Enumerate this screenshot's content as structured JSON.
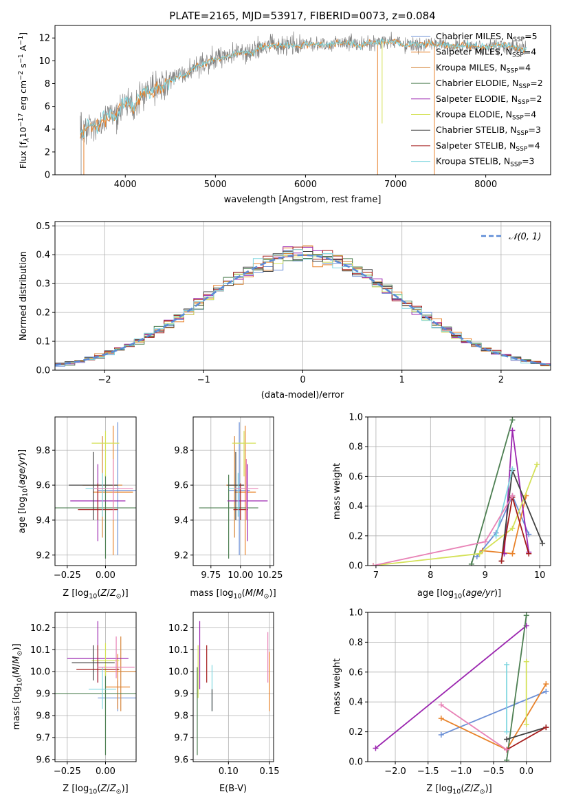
{
  "figure_title": "PLATE=2165, MJD=53917, FIBERID=0073, z=0.084",
  "colors": {
    "chabrier_miles": "#6b8fd6",
    "salpeter_miles": "#e8822a",
    "kroupa_miles": "#d6863b",
    "chabrier_elodie": "#4d7f52",
    "salpeter_elodie": "#9c27b0",
    "kroupa_elodie": "#d4e157",
    "chabrier_stelib": "#424242",
    "salpeter_stelib": "#a51c1c",
    "kroupa_stelib": "#7ed6df",
    "pink": "#e882b6",
    "data_grey": "#808080"
  },
  "chart_data": [
    {
      "id": "spectrum",
      "type": "line",
      "title": "PLATE=2165, MJD=53917, FIBERID=0073, z=0.084",
      "xlabel": "wavelength [Angstrom, rest frame]",
      "ylabel": "Flux [f_λ 10^-17 erg cm^-2 s^-1 A^-1]",
      "xlim": [
        3220,
        8720
      ],
      "ylim": [
        0,
        13.1
      ],
      "xticks": [
        4000,
        5000,
        6000,
        7000,
        8000
      ],
      "yticks": [
        0,
        2,
        4,
        6,
        8,
        10,
        12
      ],
      "grid": false,
      "legend_position": "top-right",
      "legend": [
        {
          "label": "Chabrier MILES, N",
          "sub": "SSP",
          "tail": "=5",
          "color": "#6b8fd6"
        },
        {
          "label": "Salpeter MILES, N",
          "sub": "SSP",
          "tail": "=4",
          "color": "#e8822a"
        },
        {
          "label": "Kroupa MILES, N",
          "sub": "SSP",
          "tail": "=4",
          "color": "#d6863b"
        },
        {
          "label": "Chabrier ELODIE, N",
          "sub": "SSP",
          "tail": "=2",
          "color": "#4d7f52"
        },
        {
          "label": "Salpeter ELODIE, N",
          "sub": "SSP",
          "tail": "=2",
          "color": "#9c27b0"
        },
        {
          "label": "Kroupa ELODIE, N",
          "sub": "SSP",
          "tail": "=4",
          "color": "#d4e157"
        },
        {
          "label": "Chabrier STELIB, N",
          "sub": "SSP",
          "tail": "=3",
          "color": "#424242"
        },
        {
          "label": "Salpeter STELIB, N",
          "sub": "SSP",
          "tail": "=4",
          "color": "#a51c1c"
        },
        {
          "label": "Kroupa STELIB, N",
          "sub": "SSP",
          "tail": "=3",
          "color": "#7ed6df"
        }
      ],
      "model_x": [
        3500,
        3600,
        3700,
        3800,
        3900,
        4000,
        4100,
        4200,
        4300,
        4400,
        4500,
        4600,
        4700,
        4800,
        4900,
        5000,
        5100,
        5200,
        5300,
        5400,
        5500,
        5600,
        5700,
        5800,
        5900,
        6000,
        6100,
        6200,
        6300,
        6400,
        6500,
        6600,
        6700,
        6800,
        6900,
        7000,
        7100,
        7200,
        7300,
        7400,
        7600,
        7800,
        8000,
        8200,
        8400
      ],
      "model_y": [
        3.5,
        4.4,
        4.2,
        5.3,
        5.2,
        6.5,
        5.8,
        7.2,
        7.3,
        7.9,
        8.3,
        8.6,
        8.9,
        9.6,
        9.8,
        10.2,
        10.3,
        10.5,
        10.8,
        10.6,
        11.2,
        11.3,
        11.3,
        11.4,
        11.3,
        11.5,
        11.4,
        11.4,
        11.5,
        11.6,
        11.6,
        11.3,
        11.6,
        11.6,
        11.7,
        11.7,
        11.3,
        11.5,
        11.4,
        11.5,
        11.3,
        11.4,
        11.2,
        11.4,
        11.0
      ]
    },
    {
      "id": "residuals",
      "type": "step",
      "xlabel": "(data-model)/error",
      "ylabel": "Normed distribution",
      "xlim": [
        -2.5,
        2.5
      ],
      "ylim": [
        0,
        0.515
      ],
      "xticks": [
        -2,
        -1,
        0,
        1,
        2
      ],
      "xtick_labels": [
        "−2",
        "−1",
        "0",
        "1",
        "2"
      ],
      "yticks": [
        0,
        0.1,
        0.2,
        0.3,
        0.4,
        0.5
      ],
      "grid": true,
      "legend_position": "top-right",
      "legend": [
        {
          "label": "𝒩(0, 1)",
          "color": "#5b8ad6"
        }
      ],
      "bin_width": 0.1
    },
    {
      "id": "age_vs_Z",
      "type": "errorbar",
      "xlabel": "Z [log10(Z/Z⊙)]",
      "ylabel": "age [log10(age/yr)]",
      "xlim": [
        -0.33,
        0.2
      ],
      "ylim": [
        9.14,
        9.99
      ],
      "xticks": [
        -0.25,
        0
      ],
      "xtick_labels": [
        "−0.25",
        "0.00"
      ],
      "yticks": [
        9.2,
        9.4,
        9.6,
        9.8
      ],
      "grid": true,
      "points": [
        {
          "x": 0.08,
          "y": 9.57,
          "xerr": 0.13,
          "ylo": 9.2,
          "yhi": 9.96,
          "color": "#6b8fd6"
        },
        {
          "x": 0.05,
          "y": 9.56,
          "xerr": 0.13,
          "ylo": 9.2,
          "yhi": 9.94,
          "color": "#e8822a"
        },
        {
          "x": -0.02,
          "y": 9.6,
          "xerr": 0.13,
          "ylo": 9.3,
          "yhi": 9.88,
          "color": "#d6863b"
        },
        {
          "x": 0.0,
          "y": 9.47,
          "xerr": 0.34,
          "ylo": 9.18,
          "yhi": 9.66,
          "color": "#4d7f52"
        },
        {
          "x": -0.05,
          "y": 9.51,
          "xerr": 0.18,
          "ylo": 9.28,
          "yhi": 9.72,
          "color": "#9c27b0"
        },
        {
          "x": 0.0,
          "y": 9.84,
          "xerr": 0.09,
          "ylo": 9.65,
          "yhi": 9.91,
          "color": "#d4e157"
        },
        {
          "x": -0.08,
          "y": 9.6,
          "xerr": 0.16,
          "ylo": 9.4,
          "yhi": 9.79,
          "color": "#424242"
        },
        {
          "x": -0.05,
          "y": 9.46,
          "xerr": 0.13,
          "ylo": 9.4,
          "yhi": 9.61,
          "color": "#a51c1c"
        },
        {
          "x": -0.02,
          "y": 9.58,
          "xerr": 0.11,
          "ylo": 9.42,
          "yhi": 9.67,
          "color": "#7ed6df"
        },
        {
          "x": 0.05,
          "y": 9.58,
          "xerr": 0.13,
          "ylo": 9.4,
          "yhi": 9.75,
          "color": "#e882b6"
        }
      ]
    },
    {
      "id": "age_vs_mass",
      "type": "errorbar",
      "xlabel": "mass [log10(M/M⊙)]",
      "ylabel": "",
      "xlim": [
        9.6,
        10.28
      ],
      "ylim": [
        9.14,
        9.99
      ],
      "xticks": [
        9.75,
        10.0,
        10.25
      ],
      "xtick_labels": [
        "9.75",
        "10.00",
        "10.25"
      ],
      "yticks": [
        9.2,
        9.4,
        9.6,
        9.8
      ],
      "grid": true,
      "points": [
        {
          "x": 9.99,
          "y": 9.57,
          "xerr": 0.09,
          "ylo": 9.2,
          "yhi": 9.96,
          "color": "#6b8fd6"
        },
        {
          "x": 10.04,
          "y": 9.56,
          "xerr": 0.09,
          "ylo": 9.2,
          "yhi": 9.94,
          "color": "#e8822a"
        },
        {
          "x": 9.95,
          "y": 9.6,
          "xerr": 0.07,
          "ylo": 9.3,
          "yhi": 9.88,
          "color": "#d6863b"
        },
        {
          "x": 9.9,
          "y": 9.47,
          "xerr": 0.25,
          "ylo": 9.18,
          "yhi": 9.66,
          "color": "#4d7f52"
        },
        {
          "x": 10.06,
          "y": 9.51,
          "xerr": 0.17,
          "ylo": 9.28,
          "yhi": 9.72,
          "color": "#9c27b0"
        },
        {
          "x": 10.03,
          "y": 9.84,
          "xerr": 0.1,
          "ylo": 9.65,
          "yhi": 9.91,
          "color": "#d4e157"
        },
        {
          "x": 9.96,
          "y": 9.6,
          "xerr": 0.07,
          "ylo": 9.4,
          "yhi": 9.79,
          "color": "#424242"
        },
        {
          "x": 10.0,
          "y": 9.46,
          "xerr": 0.06,
          "ylo": 9.4,
          "yhi": 9.61,
          "color": "#a51c1c"
        },
        {
          "x": 9.98,
          "y": 9.58,
          "xerr": 0.08,
          "ylo": 9.42,
          "yhi": 9.67,
          "color": "#7ed6df"
        },
        {
          "x": 10.05,
          "y": 9.58,
          "xerr": 0.1,
          "ylo": 9.4,
          "yhi": 9.75,
          "color": "#e882b6"
        }
      ]
    },
    {
      "id": "weight_vs_age",
      "type": "line",
      "xlabel": "age [log10(age/yr)]",
      "ylabel": "mass weight",
      "xlim": [
        6.85,
        10.2
      ],
      "ylim": [
        0,
        1
      ],
      "xticks": [
        7,
        8,
        9,
        10
      ],
      "yticks": [
        0,
        0.2,
        0.4,
        0.6,
        0.8,
        1.0
      ],
      "grid": true,
      "series": [
        {
          "color": "#6b8fd6",
          "x": [
            8.85,
            9.2,
            9.5,
            9.8
          ],
          "y": [
            0.06,
            0.22,
            0.47,
            0.21
          ]
        },
        {
          "color": "#e8822a",
          "x": [
            8.95,
            9.5,
            9.75
          ],
          "y": [
            0.1,
            0.08,
            0.47
          ]
        },
        {
          "color": "#4d7f52",
          "x": [
            8.75,
            9.5
          ],
          "y": [
            0.01,
            0.98
          ]
        },
        {
          "color": "#9c27b0",
          "x": [
            9.35,
            9.5,
            9.8
          ],
          "y": [
            0.08,
            0.91,
            0.09
          ]
        },
        {
          "color": "#d4e157",
          "x": [
            6.95,
            8.9,
            9.5,
            9.95
          ],
          "y": [
            0.0,
            0.08,
            0.25,
            0.68
          ]
        },
        {
          "color": "#424242",
          "x": [
            9.3,
            9.5,
            10.05
          ],
          "y": [
            0.03,
            0.64,
            0.15
          ]
        },
        {
          "color": "#a51c1c",
          "x": [
            9.3,
            9.5,
            9.8
          ],
          "y": [
            0.03,
            0.46,
            0.08
          ]
        },
        {
          "color": "#7ed6df",
          "x": [
            9.2,
            9.5
          ],
          "y": [
            0.2,
            0.65
          ]
        },
        {
          "color": "#e882b6",
          "x": [
            6.95,
            9.0,
            9.5
          ],
          "y": [
            0.0,
            0.16,
            0.47
          ]
        }
      ]
    },
    {
      "id": "mass_vs_Z",
      "type": "errorbar",
      "xlabel": "Z [log10(Z/Z⊙)]",
      "ylabel": "mass [log10(M/M⊙)]",
      "xlim": [
        -0.33,
        0.2
      ],
      "ylim": [
        9.59,
        10.27
      ],
      "xticks": [
        -0.25,
        0
      ],
      "xtick_labels": [
        "−0.25",
        "0.00"
      ],
      "yticks": [
        9.6,
        9.7,
        9.8,
        9.9,
        10.0,
        10.1,
        10.2
      ],
      "grid": true,
      "points": [
        {
          "x": 0.08,
          "y": 9.88,
          "xerr": 0.13,
          "ylo": 9.82,
          "yhi": 9.96,
          "color": "#6b8fd6"
        },
        {
          "x": 0.08,
          "y": 9.93,
          "xerr": 0.08,
          "ylo": 9.83,
          "yhi": 10.08,
          "color": "#e8822a"
        },
        {
          "x": 0.1,
          "y": 10.0,
          "xerr": 0.1,
          "ylo": 9.82,
          "yhi": 10.16,
          "color": "#d6863b"
        },
        {
          "x": 0.0,
          "y": 9.9,
          "xerr": 0.35,
          "ylo": 9.62,
          "yhi": 10.03,
          "color": "#4d7f52"
        },
        {
          "x": -0.05,
          "y": 10.06,
          "xerr": 0.2,
          "ylo": 9.95,
          "yhi": 10.23,
          "color": "#9c27b0"
        },
        {
          "x": 0.0,
          "y": 10.05,
          "xerr": 0.09,
          "ylo": 9.98,
          "yhi": 10.13,
          "color": "#d4e157"
        },
        {
          "x": -0.08,
          "y": 10.04,
          "xerr": 0.14,
          "ylo": 9.96,
          "yhi": 10.12,
          "color": "#424242"
        },
        {
          "x": -0.05,
          "y": 10.01,
          "xerr": 0.14,
          "ylo": 9.95,
          "yhi": 10.12,
          "color": "#a51c1c"
        },
        {
          "x": -0.02,
          "y": 9.92,
          "xerr": 0.09,
          "ylo": 9.83,
          "yhi": 10.02,
          "color": "#7ed6df"
        },
        {
          "x": 0.07,
          "y": 10.02,
          "xerr": 0.12,
          "ylo": 9.97,
          "yhi": 10.16,
          "color": "#e882b6"
        }
      ]
    },
    {
      "id": "mass_vs_ebv",
      "type": "errorbar",
      "xlabel": "E(B-V)",
      "ylabel": "",
      "xlim": [
        0.057,
        0.155
      ],
      "ylim": [
        9.59,
        10.27
      ],
      "xticks": [
        0.1,
        0.15
      ],
      "xtick_labels": [
        "0.10",
        "0.15"
      ],
      "yticks": [
        9.6,
        9.7,
        9.8,
        9.9,
        10.0,
        10.1,
        10.2
      ],
      "grid": true,
      "points": [
        {
          "x": 0.062,
          "ylo": 9.62,
          "yhi": 10.02,
          "color": "#4d7f52"
        },
        {
          "x": 0.063,
          "ylo": 9.88,
          "yhi": 10.12,
          "color": "#d4e157"
        },
        {
          "x": 0.065,
          "ylo": 9.92,
          "yhi": 10.23,
          "color": "#9c27b0"
        },
        {
          "x": 0.0735,
          "ylo": 9.95,
          "yhi": 10.12,
          "color": "#a51c1c"
        },
        {
          "x": 0.08,
          "ylo": 9.82,
          "yhi": 10.03,
          "color": "#7ed6df"
        },
        {
          "x": 0.08,
          "ylo": 9.82,
          "yhi": 9.92,
          "color": "#424242"
        },
        {
          "x": 0.148,
          "ylo": 9.95,
          "yhi": 10.18,
          "color": "#e882b6"
        },
        {
          "x": 0.15,
          "ylo": 9.82,
          "yhi": 10.09,
          "color": "#e8822a"
        }
      ]
    },
    {
      "id": "weight_vs_Z",
      "type": "line",
      "xlabel": "Z [log10(Z/Z⊙)]",
      "ylabel": "mass weight",
      "xlim": [
        -2.42,
        0.37
      ],
      "ylim": [
        0,
        1
      ],
      "xticks": [
        -2.0,
        -1.5,
        -1.0,
        -0.5,
        0.0
      ],
      "xtick_labels": [
        "−2.0",
        "−1.5",
        "−1.0",
        "−0.5",
        "0.0"
      ],
      "yticks": [
        0,
        0.2,
        0.4,
        0.6,
        0.8,
        1.0
      ],
      "grid": true,
      "series": [
        {
          "color": "#6b8fd6",
          "x": [
            -1.3,
            0.3
          ],
          "y": [
            0.18,
            0.47
          ]
        },
        {
          "color": "#e8822a",
          "x": [
            -1.3,
            -0.3,
            0.3
          ],
          "y": [
            0.29,
            0.08,
            0.52
          ]
        },
        {
          "color": "#9c27b0",
          "x": [
            -2.3,
            0.0
          ],
          "y": [
            0.09,
            0.91
          ]
        },
        {
          "color": "#4d7f52",
          "x": [
            -0.3,
            0.0
          ],
          "y": [
            0.01,
            0.98
          ]
        },
        {
          "color": "#424242",
          "x": [
            -0.3,
            0.3
          ],
          "y": [
            0.15,
            0.23
          ]
        },
        {
          "color": "#a51c1c",
          "x": [
            -0.3,
            0.3
          ],
          "y": [
            0.08,
            0.23
          ]
        },
        {
          "color": "#e882b6",
          "x": [
            -1.3,
            -0.3
          ],
          "y": [
            0.38,
            0.08
          ]
        },
        {
          "color": "#7ed6df",
          "x": [
            -0.3,
            -0.3
          ],
          "y": [
            0.2,
            0.65
          ]
        },
        {
          "color": "#d4e157",
          "x": [
            0.0,
            0.0
          ],
          "y": [
            0.25,
            0.67
          ]
        }
      ]
    }
  ]
}
